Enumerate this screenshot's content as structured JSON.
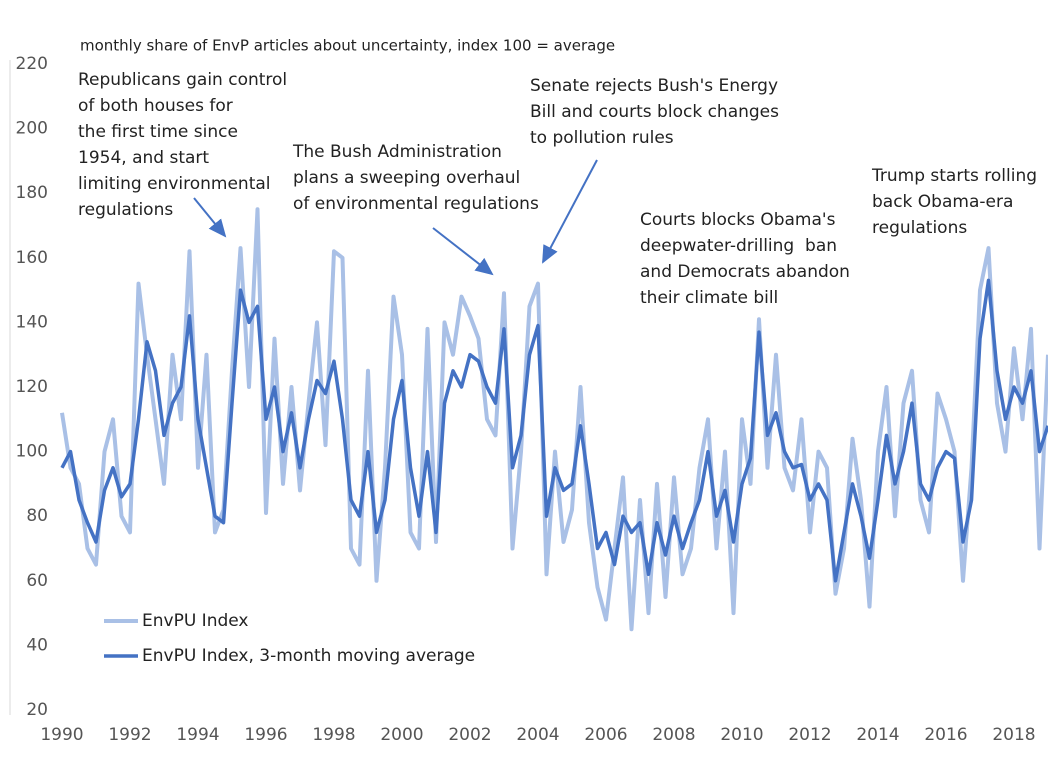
{
  "chart_data": {
    "type": "line",
    "title": "monthly share of EnvP articles about uncertainty, index 100 = average",
    "x": [
      1990,
      1990.25,
      1990.5,
      1990.75,
      1991,
      1991.25,
      1991.5,
      1991.75,
      1992,
      1992.25,
      1992.5,
      1992.75,
      1993,
      1993.25,
      1993.5,
      1993.75,
      1994,
      1994.25,
      1994.5,
      1994.75,
      1995,
      1995.25,
      1995.5,
      1995.75,
      1996,
      1996.25,
      1996.5,
      1996.75,
      1997,
      1997.25,
      1997.5,
      1997.75,
      1998,
      1998.25,
      1998.5,
      1998.75,
      1999,
      1999.25,
      1999.5,
      1999.75,
      2000,
      2000.25,
      2000.5,
      2000.75,
      2001,
      2001.25,
      2001.5,
      2001.75,
      2002,
      2002.25,
      2002.5,
      2002.75,
      2003,
      2003.25,
      2003.5,
      2003.75,
      2004,
      2004.25,
      2004.5,
      2004.75,
      2005,
      2005.25,
      2005.5,
      2005.75,
      2006,
      2006.25,
      2006.5,
      2006.75,
      2007,
      2007.25,
      2007.5,
      2007.75,
      2008,
      2008.25,
      2008.5,
      2008.75,
      2009,
      2009.25,
      2009.5,
      2009.75,
      2010,
      2010.25,
      2010.5,
      2010.75,
      2011,
      2011.25,
      2011.5,
      2011.75,
      2012,
      2012.25,
      2012.5,
      2012.75,
      2013,
      2013.25,
      2013.5,
      2013.75,
      2014,
      2014.25,
      2014.5,
      2014.75,
      2015,
      2015.25,
      2015.5,
      2015.75,
      2016,
      2016.25,
      2016.5,
      2016.75,
      2017,
      2017.25,
      2017.5,
      2017.75,
      2018,
      2018.25,
      2018.5,
      2018.75,
      2019
    ],
    "series": [
      {
        "name": "EnvPU Index",
        "color": "#a9c0e6",
        "values": [
          112,
          95,
          90,
          70,
          65,
          100,
          110,
          80,
          75,
          152,
          130,
          110,
          90,
          130,
          110,
          162,
          95,
          130,
          75,
          82,
          125,
          163,
          120,
          175,
          81,
          135,
          90,
          120,
          88,
          115,
          140,
          102,
          162,
          160,
          70,
          65,
          125,
          60,
          95,
          148,
          130,
          75,
          70,
          138,
          72,
          140,
          130,
          148,
          142,
          135,
          110,
          105,
          149,
          70,
          100,
          145,
          152,
          62,
          100,
          72,
          82,
          120,
          78,
          58,
          48,
          70,
          92,
          45,
          85,
          50,
          90,
          55,
          92,
          62,
          70,
          95,
          110,
          70,
          100,
          50,
          110,
          90,
          141,
          95,
          130,
          95,
          88,
          110,
          75,
          100,
          95,
          56,
          70,
          104,
          85,
          52,
          100,
          120,
          80,
          115,
          125,
          85,
          75,
          118,
          110,
          100,
          60,
          95,
          150,
          163,
          115,
          100,
          132,
          110,
          138,
          70,
          130
        ]
      },
      {
        "name": "EnvPU Index, 3-month moving average",
        "color": "#4472c4",
        "values": [
          95,
          100,
          85,
          78,
          72,
          88,
          95,
          86,
          90,
          110,
          134,
          125,
          105,
          115,
          120,
          142,
          110,
          95,
          80,
          78,
          115,
          150,
          140,
          145,
          110,
          120,
          100,
          112,
          95,
          110,
          122,
          118,
          128,
          110,
          85,
          80,
          100,
          75,
          85,
          110,
          122,
          95,
          80,
          100,
          75,
          115,
          125,
          120,
          130,
          128,
          120,
          115,
          138,
          95,
          105,
          130,
          139,
          80,
          95,
          88,
          90,
          108,
          90,
          70,
          75,
          65,
          80,
          75,
          78,
          62,
          78,
          68,
          80,
          70,
          78,
          85,
          100,
          80,
          88,
          72,
          90,
          98,
          137,
          105,
          112,
          100,
          95,
          96,
          85,
          90,
          85,
          60,
          75,
          90,
          80,
          67,
          85,
          105,
          90,
          100,
          115,
          90,
          85,
          95,
          100,
          98,
          72,
          85,
          135,
          153,
          125,
          110,
          120,
          115,
          125,
          100,
          108
        ]
      }
    ],
    "xlim": [
      1990,
      2019
    ],
    "xticks": [
      1990,
      1992,
      1994,
      1996,
      1998,
      2000,
      2002,
      2004,
      2006,
      2008,
      2010,
      2012,
      2014,
      2016,
      2018
    ],
    "ylim": [
      20,
      220
    ],
    "yticks": [
      20,
      40,
      60,
      80,
      100,
      120,
      140,
      160,
      180,
      200,
      220
    ],
    "grid": false,
    "legend": "lower left",
    "annotations": [
      [
        "Republicans gain control",
        "of both houses for",
        "the first time since",
        "1954, and start",
        "limiting environmental",
        "regulations"
      ],
      [
        "The Bush Administration",
        "plans a sweeping overhaul",
        "of environmental regulations"
      ],
      [
        "Senate rejects Bush's Energy",
        "Bill and courts block changes",
        "to pollution rules"
      ],
      [
        "Courts blocks Obama's",
        "deepwater-drilling  ban",
        "and Democrats abandon",
        "their climate bill"
      ],
      [
        "Trump starts rolling",
        "back Obama-era",
        "regulations"
      ]
    ]
  }
}
